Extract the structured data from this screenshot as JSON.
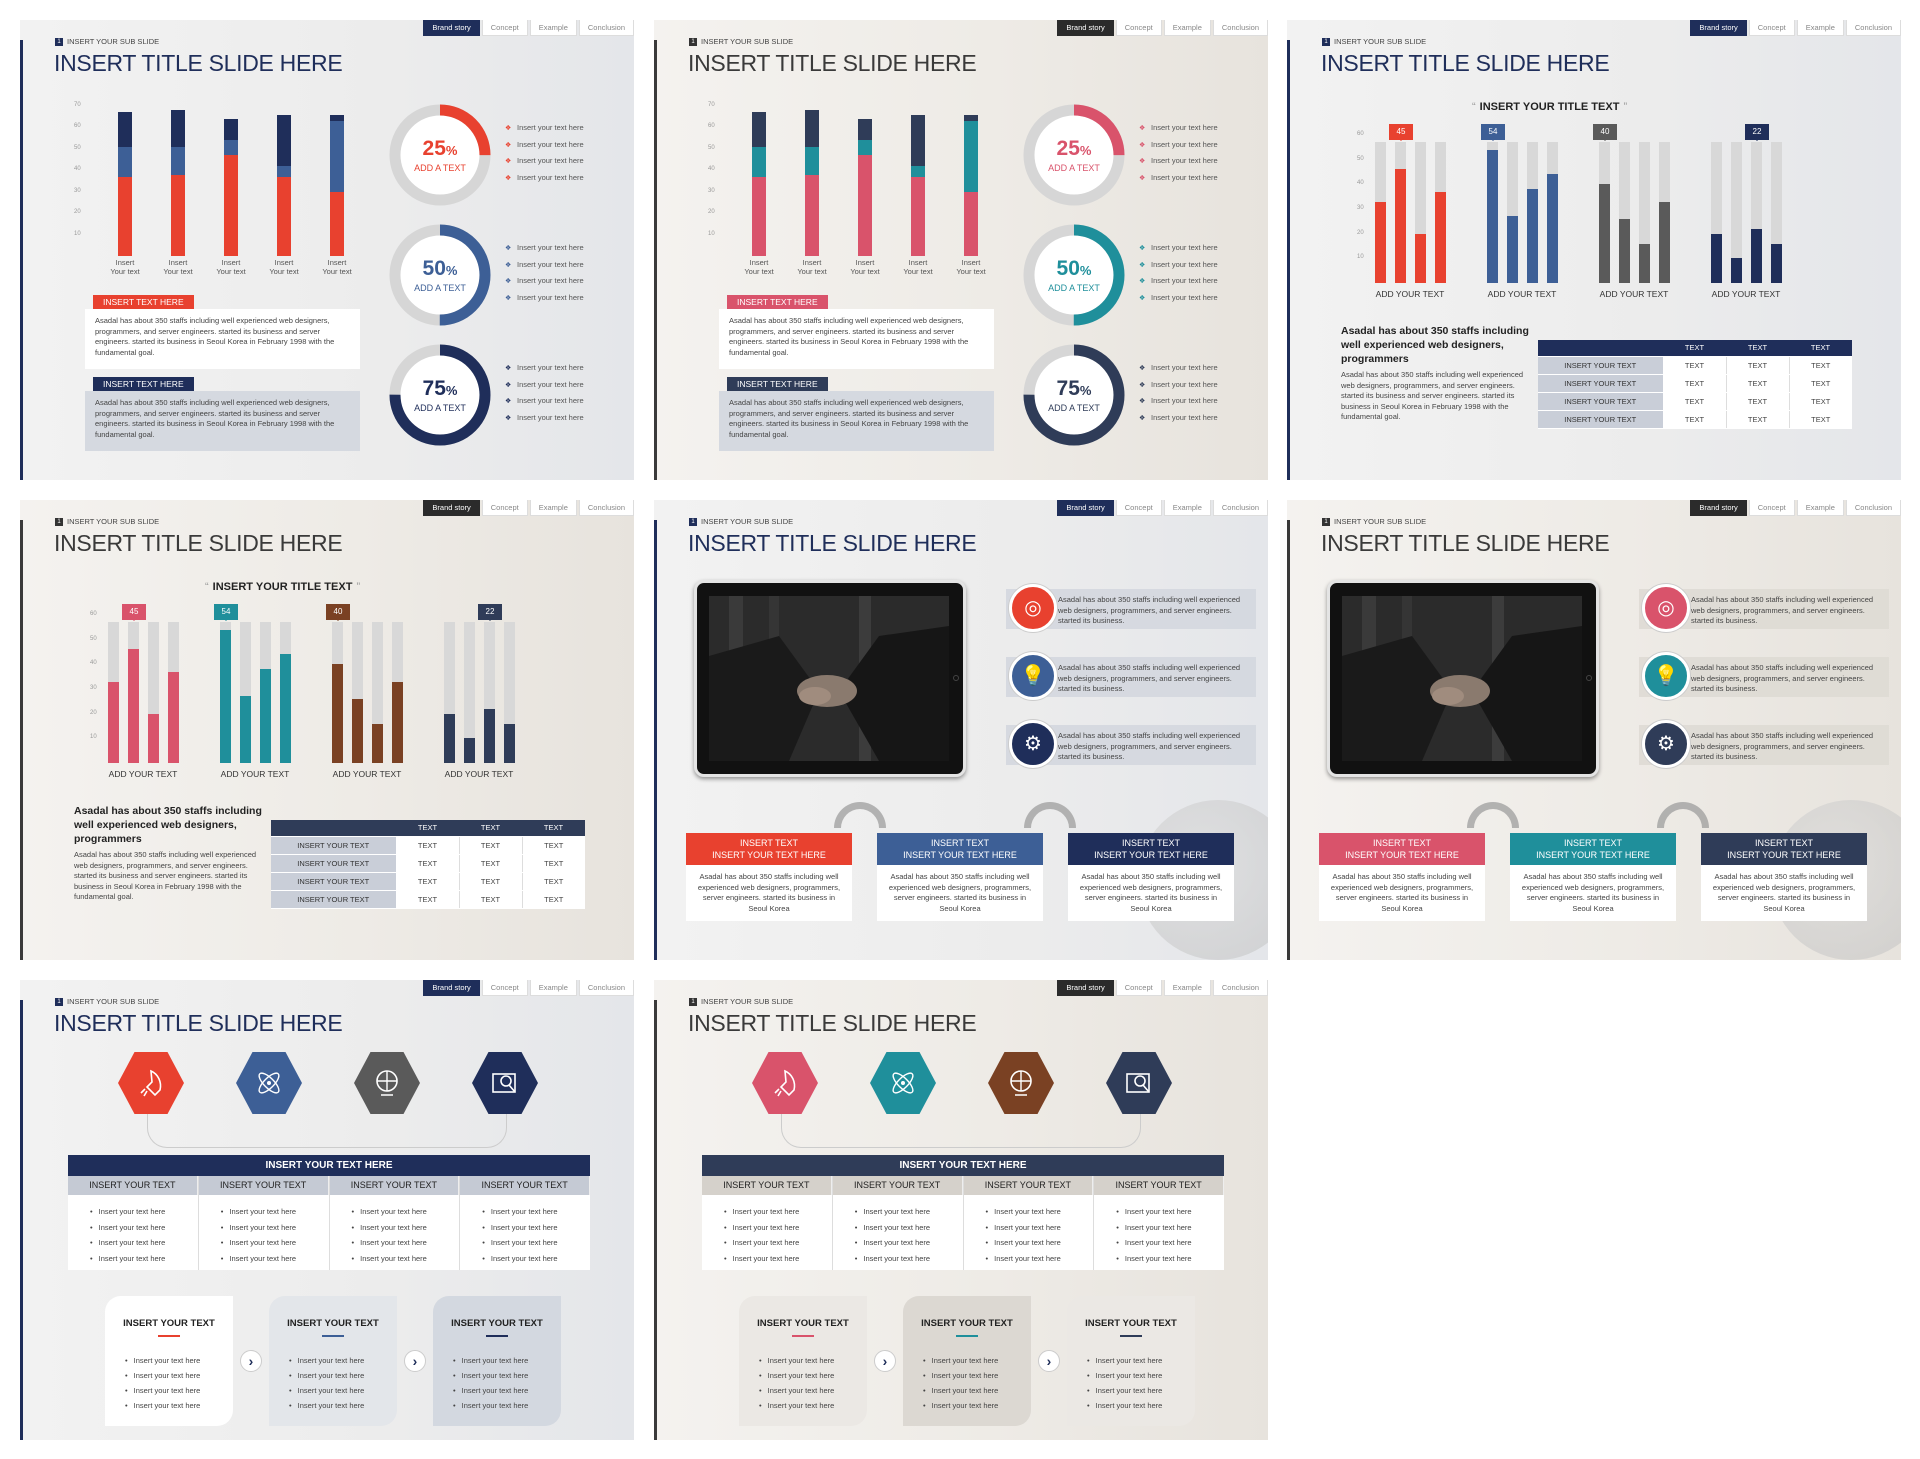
{
  "tabs": [
    "Brand story",
    "Concept",
    "Example",
    "Conclusion"
  ],
  "sub_slide": "INSERT YOUR SUB SLIDE",
  "slide_title": "INSERT TITLE SLIDE HERE",
  "colors": {
    "navy": "#1f2e5a",
    "red": "#e8412f",
    "steel": "#3d5f96",
    "grey": "#5a5a5a",
    "pink": "#d9536b",
    "teal": "#1f8f9b",
    "brown": "#7a4123",
    "dark": "#2f3c58"
  },
  "stacked_chart": {
    "yticks": [
      "70",
      "60",
      "50",
      "40",
      "30",
      "20",
      "10"
    ],
    "categories": [
      "Insert\nYour text",
      "Insert\nYour text",
      "Insert\nYour text",
      "Insert\nYour text",
      "Insert\nYour text"
    ]
  },
  "donuts": [
    {
      "pct": "25",
      "unit": "%",
      "label": "ADD A TEXT",
      "value": 0.25
    },
    {
      "pct": "50",
      "unit": "%",
      "label": "ADD A TEXT",
      "value": 0.5
    },
    {
      "pct": "75",
      "unit": "%",
      "label": "ADD A TEXT",
      "value": 0.75
    }
  ],
  "bullet_text": "Insert your text here",
  "tag": "INSERT TEXT HERE",
  "paragraph": "Asadal has about 350 staffs including well experienced web designers, programmers, and server engineers. started its business and server engineers. started its business in Seoul Korea in February 1998 with the fundamental goal.",
  "chart_title": "INSERT YOUR TITLE TEXT",
  "grouped_chart": {
    "yticks": [
      "60",
      "50",
      "40",
      "30",
      "20",
      "10"
    ],
    "groups": [
      {
        "label": "ADD YOUR TEXT",
        "badge": "45"
      },
      {
        "label": "ADD YOUR TEXT",
        "badge": "54"
      },
      {
        "label": "ADD YOUR TEXT",
        "badge": "40"
      },
      {
        "label": "ADD YOUR TEXT",
        "badge": "22"
      }
    ]
  },
  "summary_heading": "Asadal has about 350 staffs including well experienced web designers, programmers",
  "summary_body": "Asadal has about 350 staffs including well experienced web designers, programmers, and server engineers. started its business and server engineers. started its business in Seoul Korea in February 1998 with the fundamental goal.",
  "text_table": {
    "header": [
      "TEXT",
      "TEXT",
      "TEXT"
    ],
    "row_label": "INSERT YOUR TEXT",
    "cell": "TEXT"
  },
  "icon_desc": "Asadal has about 350 staffs including well experienced web designers, programmers, and server engineers. started its business.",
  "steps": [
    {
      "title": "INSERT TEXT\nINSERT YOUR TEXT HERE",
      "desc": "Asadal has about 350 staffs including well experienced web designers, programmers, server engineers. started its business in Seoul Korea"
    },
    {
      "title": "INSERT TEXT\nINSERT YOUR TEXT HERE",
      "desc": "Asadal has about 350 staffs including well experienced web designers, programmers, server engineers. started its business in Seoul Korea"
    },
    {
      "title": "INSERT TEXT\nINSERT YOUR TEXT HERE",
      "desc": "Asadal has about 350 staffs including well experienced web designers, programmers, server engineers. started its business in Seoul Korea"
    }
  ],
  "matrix": {
    "header": "INSERT YOUR TEXT HERE",
    "col_header": "INSERT YOUR TEXT",
    "bullet": "Insert your text here"
  },
  "card_title": "INSERT YOUR TEXT",
  "chart_data": [
    {
      "type": "bar",
      "title": "",
      "xlabel": "",
      "ylabel": "",
      "ylim": [
        0,
        70
      ],
      "categories": [
        "Insert Your text",
        "Insert Your text",
        "Insert Your text",
        "Insert Your text",
        "Insert Your text"
      ],
      "series": [
        {
          "values": [
            37,
            38,
            47,
            37,
            30
          ]
        },
        {
          "values": [
            14,
            13,
            7,
            5,
            33
          ]
        },
        {
          "values": [
            16,
            17,
            10,
            24,
            3
          ]
        }
      ]
    },
    {
      "type": "bar",
      "title": "INSERT YOUR TITLE TEXT",
      "xlabel": "",
      "ylabel": "",
      "ylim": [
        0,
        60
      ],
      "categories": [
        "ADD YOUR TEXT",
        "ADD YOUR TEXT",
        "ADD YOUR TEXT",
        "ADD YOUR TEXT"
      ],
      "series": [
        {
          "values": [
            [
              33,
              46,
              20,
              37
            ],
            [
              54,
              27,
              38,
              44
            ],
            [
              40,
              26,
              16,
              33
            ],
            [
              20,
              10,
              22,
              16
            ]
          ]
        }
      ]
    }
  ]
}
